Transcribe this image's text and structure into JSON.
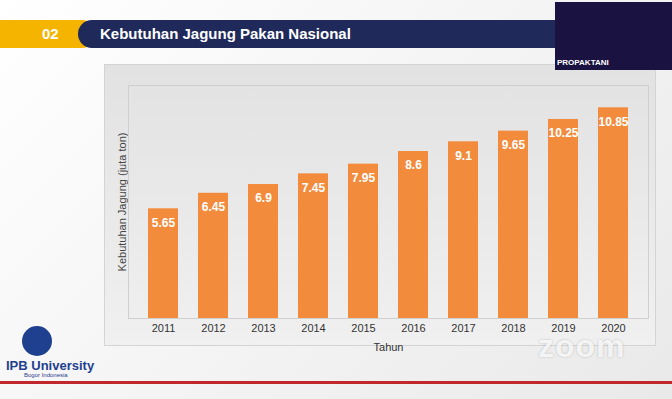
{
  "chart_data": {
    "type": "bar",
    "title": "Kebutuhan Jagung Pakan Nasional",
    "x_label": "Tahun",
    "y_label": "Kebutuhan Jagung (juta ton)",
    "categories": [
      "2011",
      "2012",
      "2013",
      "2014",
      "2015",
      "2016",
      "2017",
      "2018",
      "2019",
      "2020"
    ],
    "values": [
      5.65,
      6.45,
      6.9,
      7.45,
      7.95,
      8.6,
      9.1,
      9.65,
      10.25,
      10.85
    ],
    "color": "#f28c3c",
    "ylim": [
      0,
      12
    ],
    "yticks": [],
    "tick_labels": "x",
    "data_labels": true,
    "grid": false,
    "annotations": [
      "02",
      "IPB University",
      "Bogor Indonesia",
      "zoom",
      "PROPAKTANI"
    ]
  }
}
